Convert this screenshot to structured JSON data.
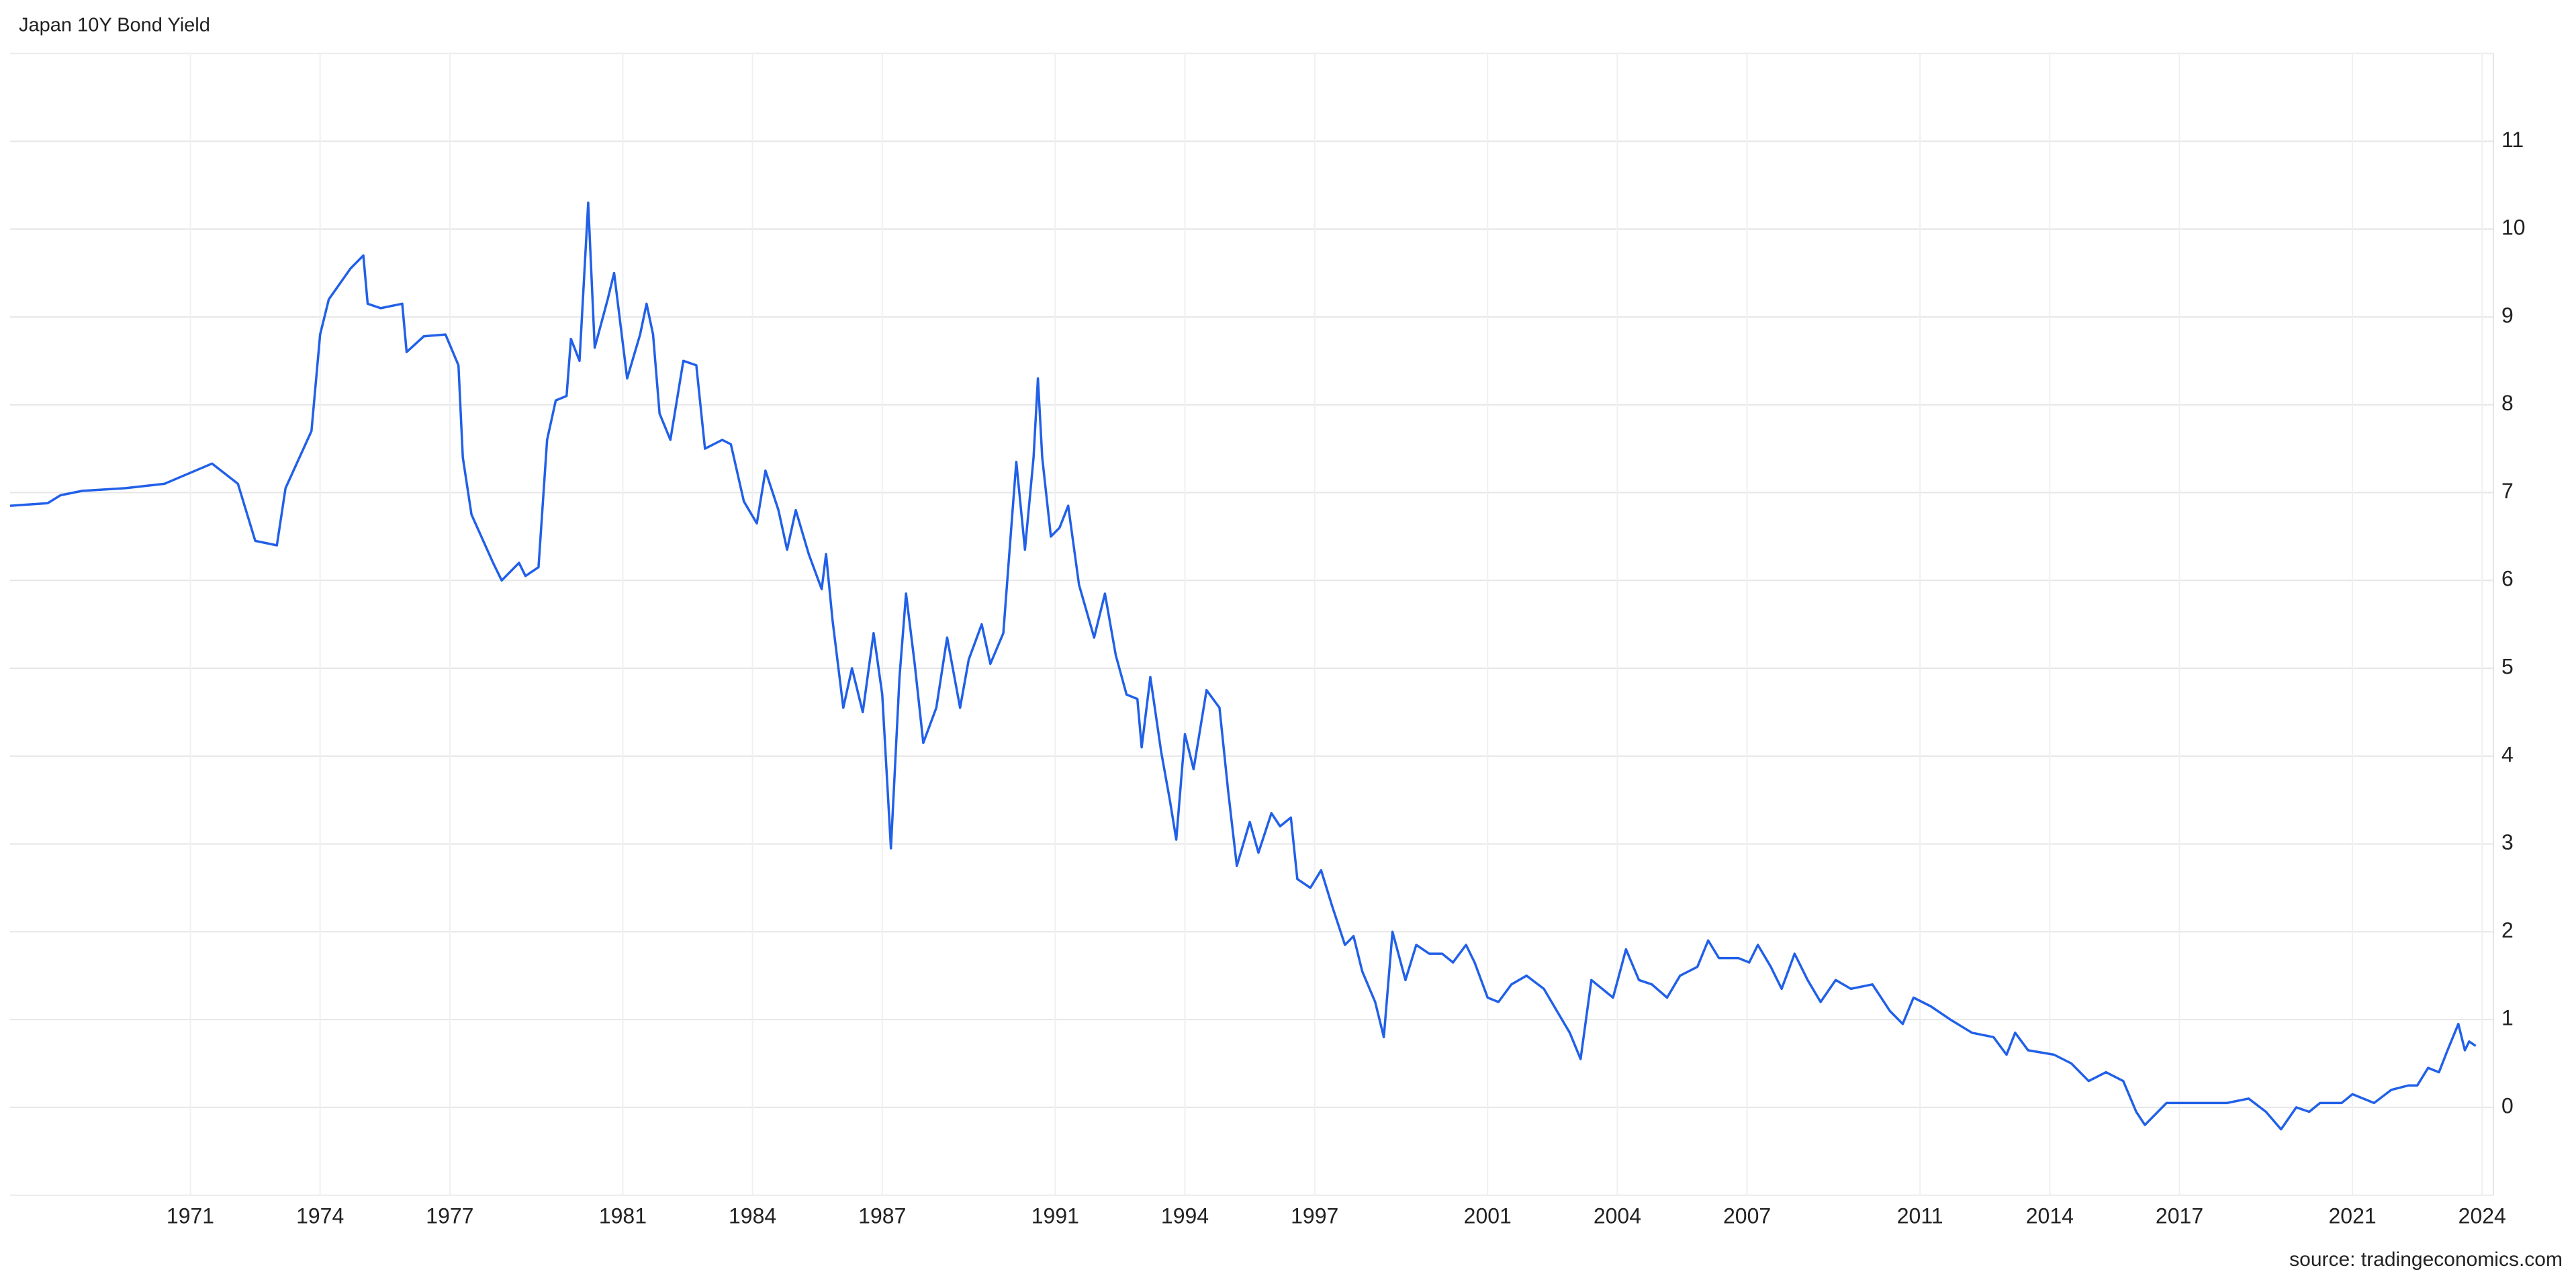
{
  "chart_data": {
    "type": "line",
    "title": "Japan 10Y Bond Yield",
    "source": "source: tradingeconomics.com",
    "xlim": [
      1966.83,
      2024.26
    ],
    "ylim": [
      -1,
      12
    ],
    "xticks": [
      1971,
      1974,
      1977,
      1981,
      1984,
      1987,
      1991,
      1994,
      1997,
      2001,
      2004,
      2007,
      2011,
      2014,
      2017,
      2021,
      2024
    ],
    "yticks": [
      0,
      1,
      2,
      3,
      4,
      5,
      6,
      7,
      8,
      9,
      10,
      11
    ],
    "grid": true,
    "series": [
      {
        "name": "Japan 10Y Bond Yield",
        "color": "#2160e8",
        "x": [
          1966.83,
          1967.7,
          1968.0,
          1968.5,
          1969.5,
          1970.4,
          1971.5,
          1972.1,
          1972.5,
          1973.0,
          1973.2,
          1973.8,
          1974.0,
          1974.2,
          1974.7,
          1975.0,
          1975.1,
          1975.4,
          1975.9,
          1976.0,
          1976.4,
          1976.9,
          1977.2,
          1977.3,
          1977.5,
          1978.0,
          1978.2,
          1978.6,
          1978.75,
          1979.05,
          1979.25,
          1979.45,
          1979.7,
          1979.8,
          1980.0,
          1980.2,
          1980.35,
          1980.65,
          1980.8,
          1981.1,
          1981.4,
          1981.55,
          1981.7,
          1981.85,
          1982.1,
          1982.4,
          1982.7,
          1982.9,
          1983.3,
          1983.5,
          1983.8,
          1984.1,
          1984.3,
          1984.6,
          1984.8,
          1985.0,
          1985.3,
          1985.6,
          1985.7,
          1985.85,
          1986.1,
          1986.3,
          1986.55,
          1986.8,
          1987.0,
          1987.2,
          1987.4,
          1987.55,
          1987.75,
          1987.95,
          1988.25,
          1988.5,
          1988.8,
          1989.0,
          1989.3,
          1989.5,
          1989.8,
          1990.0,
          1990.1,
          1990.3,
          1990.5,
          1990.6,
          1990.7,
          1990.9,
          1991.1,
          1991.3,
          1991.55,
          1991.9,
          1992.15,
          1992.4,
          1992.65,
          1992.9,
          1993.0,
          1993.2,
          1993.45,
          1993.65,
          1993.8,
          1994.0,
          1994.2,
          1994.5,
          1994.8,
          1995.0,
          1995.2,
          1995.5,
          1995.7,
          1996.0,
          1996.2,
          1996.45,
          1996.6,
          1996.9,
          1997.15,
          1997.4,
          1997.7,
          1997.9,
          1998.1,
          1998.4,
          1998.6,
          1998.8,
          1999.1,
          1999.35,
          1999.65,
          1999.95,
          2000.2,
          2000.5,
          2000.7,
          2001.0,
          2001.25,
          2001.55,
          2001.9,
          2002.3,
          2002.6,
          2002.9,
          2003.15,
          2003.4,
          2003.65,
          2003.9,
          2004.2,
          2004.5,
          2004.8,
          2005.15,
          2005.45,
          2005.85,
          2006.1,
          2006.35,
          2006.8,
          2007.05,
          2007.25,
          2007.55,
          2007.8,
          2008.1,
          2008.4,
          2008.7,
          2009.05,
          2009.4,
          2009.9,
          2010.3,
          2010.6,
          2010.85,
          2011.25,
          2011.7,
          2012.2,
          2012.7,
          2013.0,
          2013.2,
          2013.5,
          2014.1,
          2014.5,
          2014.9,
          2015.3,
          2015.7,
          2016.0,
          2016.2,
          2016.7,
          2017.3,
          2018.1,
          2018.6,
          2019.0,
          2019.35,
          2019.7,
          2020.0,
          2020.25,
          2020.75,
          2021.0,
          2021.5,
          2021.9,
          2022.3,
          2022.5,
          2022.75,
          2023.0,
          2023.2,
          2023.45,
          2023.6,
          2023.7,
          2023.85
        ],
        "values": [
          6.85,
          6.88,
          6.97,
          7.02,
          7.05,
          7.1,
          7.33,
          7.1,
          6.45,
          6.4,
          7.05,
          7.7,
          8.8,
          9.2,
          9.55,
          9.7,
          9.15,
          9.1,
          9.15,
          8.6,
          8.78,
          8.8,
          8.45,
          7.4,
          6.75,
          6.2,
          6.0,
          6.2,
          6.05,
          6.15,
          7.6,
          8.05,
          8.1,
          8.75,
          8.5,
          10.3,
          8.65,
          9.2,
          9.5,
          8.3,
          8.8,
          9.15,
          8.8,
          7.9,
          7.6,
          8.5,
          8.45,
          7.5,
          7.6,
          7.55,
          6.9,
          6.65,
          7.25,
          6.8,
          6.35,
          6.8,
          6.3,
          5.9,
          6.3,
          5.55,
          4.55,
          5.0,
          4.5,
          5.4,
          4.7,
          2.95,
          4.9,
          5.85,
          5.05,
          4.15,
          4.55,
          5.35,
          4.55,
          5.1,
          5.5,
          5.05,
          5.4,
          6.7,
          7.35,
          6.35,
          7.4,
          8.3,
          7.4,
          6.5,
          6.6,
          6.85,
          5.95,
          5.35,
          5.85,
          5.15,
          4.7,
          4.65,
          4.1,
          4.9,
          4.05,
          3.5,
          3.05,
          4.25,
          3.85,
          4.75,
          4.55,
          3.6,
          2.75,
          3.25,
          2.9,
          3.35,
          3.2,
          3.3,
          2.6,
          2.5,
          2.7,
          2.3,
          1.85,
          1.95,
          1.55,
          1.2,
          0.8,
          2.0,
          1.45,
          1.85,
          1.75,
          1.75,
          1.65,
          1.85,
          1.65,
          1.25,
          1.2,
          1.4,
          1.5,
          1.35,
          1.1,
          0.85,
          0.55,
          1.45,
          1.35,
          1.25,
          1.8,
          1.45,
          1.4,
          1.25,
          1.5,
          1.6,
          1.9,
          1.7,
          1.7,
          1.65,
          1.85,
          1.6,
          1.35,
          1.75,
          1.45,
          1.2,
          1.45,
          1.35,
          1.4,
          1.1,
          0.95,
          1.25,
          1.15,
          1.0,
          0.85,
          0.8,
          0.6,
          0.85,
          0.65,
          0.6,
          0.5,
          0.3,
          0.4,
          0.3,
          -0.05,
          -0.2,
          0.05,
          0.05,
          0.05,
          0.1,
          -0.05,
          -0.25,
          0.0,
          -0.05,
          0.05,
          0.05,
          0.15,
          0.05,
          0.2,
          0.25,
          0.25,
          0.45,
          0.4,
          0.65,
          0.95,
          0.65,
          0.75,
          0.7
        ]
      }
    ]
  }
}
